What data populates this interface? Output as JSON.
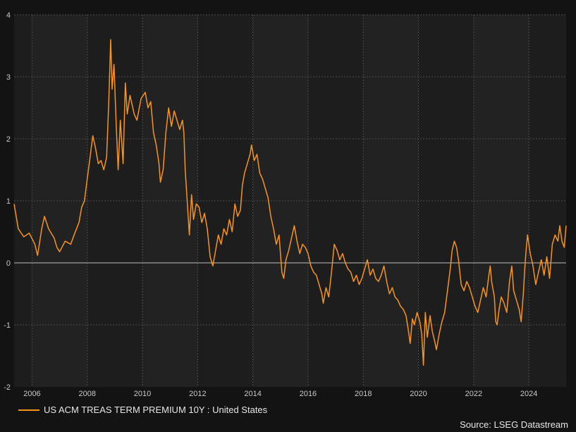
{
  "chart_data": {
    "type": "line",
    "title": "",
    "xlabel": "",
    "ylabel": "",
    "xlim": [
      2005.35,
      2025.35
    ],
    "ylim": [
      -2,
      4
    ],
    "x_ticks": [
      "2006",
      "2008",
      "2010",
      "2012",
      "2014",
      "2016",
      "2018",
      "2020",
      "2022",
      "2024"
    ],
    "y_ticks": [
      "-2",
      "-1",
      "0",
      "1",
      "2",
      "3",
      "4"
    ],
    "grid": true,
    "legend_position": "bottom-left",
    "zero_line": true,
    "source": "Source: LSEG Datastream",
    "series": [
      {
        "name": "US ACM TREAS TERM PREMIUM 10Y : United States",
        "color": "#f7941d",
        "points": [
          [
            2005.35,
            0.95
          ],
          [
            2005.5,
            0.55
          ],
          [
            2005.7,
            0.42
          ],
          [
            2005.9,
            0.48
          ],
          [
            2006.1,
            0.3
          ],
          [
            2006.2,
            0.12
          ],
          [
            2006.35,
            0.55
          ],
          [
            2006.45,
            0.75
          ],
          [
            2006.6,
            0.55
          ],
          [
            2006.8,
            0.4
          ],
          [
            2006.9,
            0.25
          ],
          [
            2007.0,
            0.18
          ],
          [
            2007.2,
            0.35
          ],
          [
            2007.4,
            0.3
          ],
          [
            2007.55,
            0.48
          ],
          [
            2007.7,
            0.65
          ],
          [
            2007.8,
            0.9
          ],
          [
            2007.9,
            1.0
          ],
          [
            2008.0,
            1.35
          ],
          [
            2008.1,
            1.7
          ],
          [
            2008.2,
            2.05
          ],
          [
            2008.3,
            1.85
          ],
          [
            2008.4,
            1.6
          ],
          [
            2008.5,
            1.65
          ],
          [
            2008.6,
            1.5
          ],
          [
            2008.7,
            1.7
          ],
          [
            2008.78,
            2.6
          ],
          [
            2008.85,
            3.6
          ],
          [
            2008.9,
            2.8
          ],
          [
            2008.97,
            3.2
          ],
          [
            2009.05,
            2.2
          ],
          [
            2009.12,
            1.5
          ],
          [
            2009.2,
            2.3
          ],
          [
            2009.3,
            1.6
          ],
          [
            2009.38,
            2.9
          ],
          [
            2009.45,
            2.4
          ],
          [
            2009.55,
            2.7
          ],
          [
            2009.7,
            2.4
          ],
          [
            2009.8,
            2.3
          ],
          [
            2009.95,
            2.65
          ],
          [
            2010.1,
            2.75
          ],
          [
            2010.2,
            2.5
          ],
          [
            2010.3,
            2.6
          ],
          [
            2010.4,
            2.1
          ],
          [
            2010.5,
            1.9
          ],
          [
            2010.6,
            1.6
          ],
          [
            2010.65,
            1.3
          ],
          [
            2010.75,
            1.5
          ],
          [
            2010.85,
            2.1
          ],
          [
            2010.95,
            2.5
          ],
          [
            2011.05,
            2.2
          ],
          [
            2011.15,
            2.45
          ],
          [
            2011.25,
            2.3
          ],
          [
            2011.35,
            2.15
          ],
          [
            2011.45,
            2.3
          ],
          [
            2011.5,
            2.1
          ],
          [
            2011.55,
            1.5
          ],
          [
            2011.62,
            1.0
          ],
          [
            2011.7,
            0.45
          ],
          [
            2011.78,
            1.1
          ],
          [
            2011.85,
            0.7
          ],
          [
            2011.95,
            0.95
          ],
          [
            2012.05,
            0.9
          ],
          [
            2012.15,
            0.65
          ],
          [
            2012.25,
            0.8
          ],
          [
            2012.35,
            0.55
          ],
          [
            2012.45,
            0.1
          ],
          [
            2012.55,
            -0.05
          ],
          [
            2012.65,
            0.2
          ],
          [
            2012.75,
            0.45
          ],
          [
            2012.85,
            0.3
          ],
          [
            2012.95,
            0.55
          ],
          [
            2013.05,
            0.45
          ],
          [
            2013.15,
            0.7
          ],
          [
            2013.25,
            0.5
          ],
          [
            2013.35,
            0.95
          ],
          [
            2013.45,
            0.75
          ],
          [
            2013.55,
            0.85
          ],
          [
            2013.62,
            1.25
          ],
          [
            2013.7,
            1.45
          ],
          [
            2013.8,
            1.6
          ],
          [
            2013.9,
            1.75
          ],
          [
            2013.95,
            1.9
          ],
          [
            2014.05,
            1.65
          ],
          [
            2014.15,
            1.75
          ],
          [
            2014.25,
            1.45
          ],
          [
            2014.35,
            1.35
          ],
          [
            2014.45,
            1.2
          ],
          [
            2014.55,
            1.05
          ],
          [
            2014.65,
            0.75
          ],
          [
            2014.75,
            0.55
          ],
          [
            2014.85,
            0.3
          ],
          [
            2014.95,
            0.45
          ],
          [
            2015.05,
            -0.15
          ],
          [
            2015.12,
            -0.25
          ],
          [
            2015.2,
            0.05
          ],
          [
            2015.3,
            0.2
          ],
          [
            2015.4,
            0.4
          ],
          [
            2015.5,
            0.6
          ],
          [
            2015.6,
            0.35
          ],
          [
            2015.7,
            0.15
          ],
          [
            2015.8,
            0.3
          ],
          [
            2015.9,
            0.25
          ],
          [
            2016.0,
            0.15
          ],
          [
            2016.1,
            -0.05
          ],
          [
            2016.2,
            -0.15
          ],
          [
            2016.3,
            -0.2
          ],
          [
            2016.4,
            -0.35
          ],
          [
            2016.5,
            -0.5
          ],
          [
            2016.55,
            -0.65
          ],
          [
            2016.65,
            -0.4
          ],
          [
            2016.75,
            -0.55
          ],
          [
            2016.85,
            -0.15
          ],
          [
            2016.95,
            0.3
          ],
          [
            2017.05,
            0.2
          ],
          [
            2017.15,
            0.05
          ],
          [
            2017.25,
            0.15
          ],
          [
            2017.35,
            0.0
          ],
          [
            2017.45,
            -0.1
          ],
          [
            2017.55,
            -0.15
          ],
          [
            2017.65,
            -0.3
          ],
          [
            2017.75,
            -0.2
          ],
          [
            2017.85,
            -0.35
          ],
          [
            2017.95,
            -0.25
          ],
          [
            2018.05,
            -0.1
          ],
          [
            2018.15,
            0.05
          ],
          [
            2018.25,
            -0.2
          ],
          [
            2018.35,
            -0.1
          ],
          [
            2018.45,
            -0.25
          ],
          [
            2018.55,
            -0.3
          ],
          [
            2018.65,
            -0.2
          ],
          [
            2018.75,
            -0.05
          ],
          [
            2018.85,
            -0.3
          ],
          [
            2018.95,
            -0.5
          ],
          [
            2019.05,
            -0.4
          ],
          [
            2019.15,
            -0.55
          ],
          [
            2019.25,
            -0.6
          ],
          [
            2019.35,
            -0.7
          ],
          [
            2019.45,
            -0.75
          ],
          [
            2019.55,
            -0.85
          ],
          [
            2019.62,
            -1.05
          ],
          [
            2019.7,
            -1.3
          ],
          [
            2019.78,
            -0.9
          ],
          [
            2019.85,
            -1.0
          ],
          [
            2019.95,
            -0.8
          ],
          [
            2020.05,
            -0.95
          ],
          [
            2020.12,
            -1.15
          ],
          [
            2020.18,
            -1.65
          ],
          [
            2020.25,
            -0.8
          ],
          [
            2020.32,
            -1.2
          ],
          [
            2020.42,
            -0.85
          ],
          [
            2020.5,
            -1.1
          ],
          [
            2020.58,
            -1.25
          ],
          [
            2020.65,
            -1.4
          ],
          [
            2020.75,
            -1.15
          ],
          [
            2020.85,
            -0.95
          ],
          [
            2020.95,
            -0.8
          ],
          [
            2021.05,
            -0.45
          ],
          [
            2021.15,
            -0.1
          ],
          [
            2021.22,
            0.2
          ],
          [
            2021.3,
            0.35
          ],
          [
            2021.38,
            0.25
          ],
          [
            2021.45,
            0.05
          ],
          [
            2021.55,
            -0.35
          ],
          [
            2021.65,
            -0.45
          ],
          [
            2021.75,
            -0.3
          ],
          [
            2021.85,
            -0.4
          ],
          [
            2021.95,
            -0.55
          ],
          [
            2022.05,
            -0.7
          ],
          [
            2022.15,
            -0.8
          ],
          [
            2022.25,
            -0.6
          ],
          [
            2022.35,
            -0.4
          ],
          [
            2022.45,
            -0.55
          ],
          [
            2022.55,
            -0.2
          ],
          [
            2022.6,
            -0.05
          ],
          [
            2022.65,
            -0.3
          ],
          [
            2022.75,
            -0.55
          ],
          [
            2022.8,
            -0.95
          ],
          [
            2022.85,
            -1.0
          ],
          [
            2022.92,
            -0.75
          ],
          [
            2023.0,
            -0.55
          ],
          [
            2023.1,
            -0.65
          ],
          [
            2023.2,
            -0.8
          ],
          [
            2023.3,
            -0.3
          ],
          [
            2023.38,
            -0.05
          ],
          [
            2023.45,
            -0.45
          ],
          [
            2023.55,
            -0.6
          ],
          [
            2023.65,
            -0.75
          ],
          [
            2023.72,
            -0.95
          ],
          [
            2023.8,
            -0.5
          ],
          [
            2023.85,
            -0.1
          ],
          [
            2023.9,
            0.2
          ],
          [
            2023.95,
            0.45
          ],
          [
            2024.05,
            0.15
          ],
          [
            2024.15,
            -0.05
          ],
          [
            2024.25,
            -0.35
          ],
          [
            2024.35,
            -0.15
          ],
          [
            2024.45,
            0.05
          ],
          [
            2024.55,
            -0.2
          ],
          [
            2024.65,
            0.1
          ],
          [
            2024.75,
            -0.25
          ],
          [
            2024.85,
            0.3
          ],
          [
            2024.95,
            0.45
          ],
          [
            2025.05,
            0.35
          ],
          [
            2025.12,
            0.6
          ],
          [
            2025.2,
            0.35
          ],
          [
            2025.28,
            0.25
          ],
          [
            2025.35,
            0.6
          ]
        ]
      }
    ]
  }
}
